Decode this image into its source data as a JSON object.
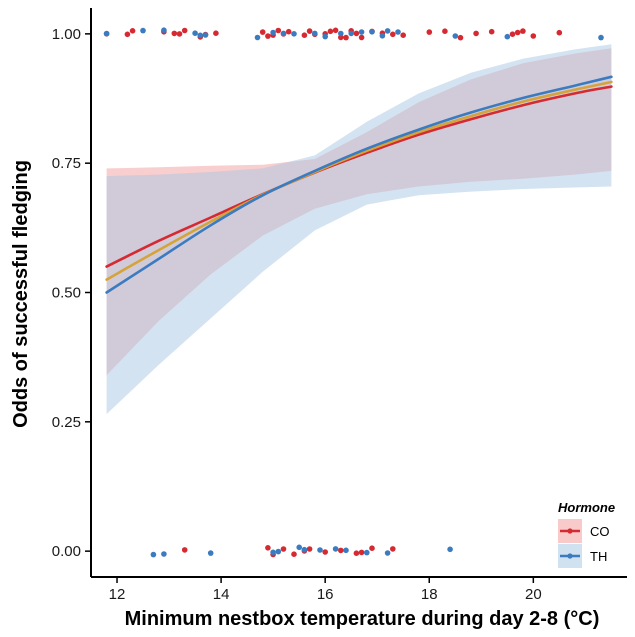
{
  "chart_data": {
    "type": "line",
    "xlabel": "Minimum nestbox temperature during day 2-8 (°C)",
    "ylabel": "Odds of successful fledging",
    "xlim": [
      11.5,
      21.8
    ],
    "ylim": [
      -0.05,
      1.05
    ],
    "x_ticks": [
      12,
      14,
      16,
      18,
      20
    ],
    "x_tick_labels": [
      "12",
      "14",
      "16",
      "18",
      "20"
    ],
    "y_ticks": [
      0,
      0.25,
      0.5,
      0.75,
      1
    ],
    "y_tick_labels": [
      "0.00",
      "0.25",
      "0.50",
      "0.75",
      "1.00"
    ],
    "grid": false,
    "legend": {
      "title": "Hormone",
      "position": "bottom-right",
      "entries": [
        {
          "label": "CO",
          "color": "#d62a32",
          "fill": "#f4a6a6"
        },
        {
          "label": "TH",
          "color": "#3b7bbf",
          "fill": "#a9c8e3"
        }
      ]
    },
    "series": [
      {
        "name": "CO",
        "color": "#d62a32",
        "x": [
          11.8,
          12.8,
          13.8,
          14.8,
          15.8,
          16.8,
          17.8,
          18.8,
          19.8,
          20.8,
          21.5
        ],
        "y": [
          0.55,
          0.6,
          0.645,
          0.69,
          0.732,
          0.77,
          0.805,
          0.835,
          0.862,
          0.885,
          0.898
        ],
        "lower": [
          0.34,
          0.445,
          0.535,
          0.61,
          0.662,
          0.69,
          0.705,
          0.714,
          0.72,
          0.728,
          0.735
        ],
        "upper": [
          0.74,
          0.742,
          0.745,
          0.747,
          0.758,
          0.81,
          0.868,
          0.912,
          0.943,
          0.962,
          0.972
        ]
      },
      {
        "name": "TH",
        "color": "#3b7bbf",
        "x": [
          11.8,
          12.8,
          13.8,
          14.8,
          15.8,
          16.8,
          17.8,
          18.8,
          19.8,
          20.8,
          21.5
        ],
        "y": [
          0.5,
          0.565,
          0.63,
          0.688,
          0.735,
          0.778,
          0.815,
          0.848,
          0.876,
          0.9,
          0.917
        ],
        "lower": [
          0.265,
          0.36,
          0.45,
          0.54,
          0.62,
          0.67,
          0.688,
          0.695,
          0.7,
          0.703,
          0.705
        ],
        "upper": [
          0.725,
          0.728,
          0.733,
          0.74,
          0.765,
          0.83,
          0.885,
          0.925,
          0.952,
          0.97,
          0.98
        ]
      },
      {
        "name": "",
        "color": "#d4a43a",
        "x": [
          11.8,
          12.8,
          13.8,
          14.8,
          15.8,
          16.8,
          17.8,
          18.8,
          19.8,
          20.8,
          21.5
        ],
        "y": [
          0.525,
          0.582,
          0.637,
          0.689,
          0.733,
          0.774,
          0.81,
          0.841,
          0.869,
          0.892,
          0.907
        ]
      }
    ],
    "points": {
      "CO": {
        "color": "#d62a32",
        "fledged_x": [
          11.8,
          12.2,
          12.3,
          12.9,
          13.1,
          13.2,
          13.3,
          13.6,
          13.7,
          13.9,
          14.8,
          14.9,
          15.0,
          15.1,
          15.2,
          15.3,
          15.6,
          15.7,
          15.8,
          16.0,
          16.1,
          16.2,
          16.3,
          16.4,
          16.5,
          16.6,
          16.7,
          16.9,
          17.1,
          17.3,
          17.5,
          18.0,
          18.3,
          18.6,
          18.9,
          19.2,
          19.6,
          19.7,
          19.8,
          20.0,
          20.5
        ],
        "failed_x": [
          13.3,
          14.9,
          15.0,
          15.2,
          15.4,
          15.6,
          15.7,
          16.0,
          16.3,
          16.6,
          16.7,
          16.9,
          17.3
        ]
      },
      "TH": {
        "color": "#3b7bbf",
        "fledged_x": [
          11.8,
          12.5,
          12.9,
          13.5,
          13.6,
          13.7,
          14.7,
          15.0,
          15.2,
          15.4,
          15.8,
          16.0,
          16.3,
          16.5,
          16.7,
          16.9,
          17.1,
          17.2,
          17.4,
          18.5,
          19.5,
          21.3
        ],
        "failed_x": [
          12.7,
          12.9,
          13.8,
          15.0,
          15.1,
          15.5,
          15.6,
          15.9,
          16.2,
          16.4,
          16.8,
          17.2,
          18.4
        ]
      }
    }
  }
}
